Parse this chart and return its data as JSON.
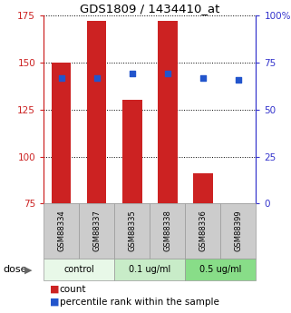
{
  "title": "GDS1809 / 1434410_at",
  "categories": [
    "GSM88334",
    "GSM88337",
    "GSM88335",
    "GSM88338",
    "GSM88336",
    "GSM88399"
  ],
  "bar_values": [
    150,
    172,
    130,
    172,
    91,
    75
  ],
  "bar_base": 75,
  "dot_values": [
    67,
    67,
    69,
    69,
    67,
    66
  ],
  "ylim_left": [
    75,
    175
  ],
  "ylim_right": [
    0,
    100
  ],
  "left_ticks": [
    75,
    100,
    125,
    150,
    175
  ],
  "right_ticks": [
    0,
    25,
    50,
    75,
    100
  ],
  "right_tick_labels": [
    "0",
    "25",
    "50",
    "75",
    "100%"
  ],
  "bar_color": "#cc2222",
  "dot_color": "#2255cc",
  "group_colors": {
    "control": "#e8f8e8",
    "0.1 ug/ml": "#c8ecc8",
    "0.5 ug/ml": "#88dd88"
  },
  "dose_label": "dose",
  "legend_count": "count",
  "legend_pct": "percentile rank within the sample",
  "tick_color_left": "#cc2222",
  "tick_color_right": "#3333cc",
  "xlabel_bg": "#cccccc",
  "grid_color": "#000000"
}
